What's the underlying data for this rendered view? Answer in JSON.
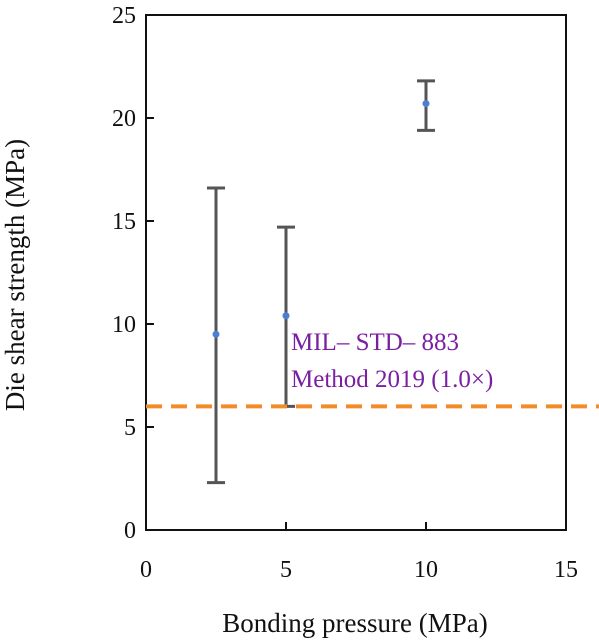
{
  "chart_data": {
    "type": "scatter",
    "title": "",
    "xlabel": "Bonding pressure (MPa)",
    "ylabel": "Die shear strength (MPa)",
    "xlim": [
      0,
      15
    ],
    "ylim": [
      0,
      25
    ],
    "xticks": [
      0,
      5,
      10,
      15
    ],
    "yticks": [
      0,
      5,
      10,
      15,
      20,
      25
    ],
    "grid": false,
    "points": [
      {
        "x": 2.5,
        "y": 9.5,
        "err_low": 2.3,
        "err_high": 16.6
      },
      {
        "x": 5,
        "y": 10.4,
        "err_low": 6.0,
        "err_high": 14.7
      },
      {
        "x": 10,
        "y": 20.7,
        "err_low": 19.4,
        "err_high": 21.8
      }
    ],
    "reference_line": {
      "y": 6.0,
      "style": "dashed",
      "color": "#F28C28",
      "label_lines": [
        "MIL– STD– 883",
        "Method 2019 (1.0×)"
      ],
      "label_color": "#7B1FA2"
    },
    "point_color": "#4A7FD4",
    "errorbar_color": "#555555"
  }
}
